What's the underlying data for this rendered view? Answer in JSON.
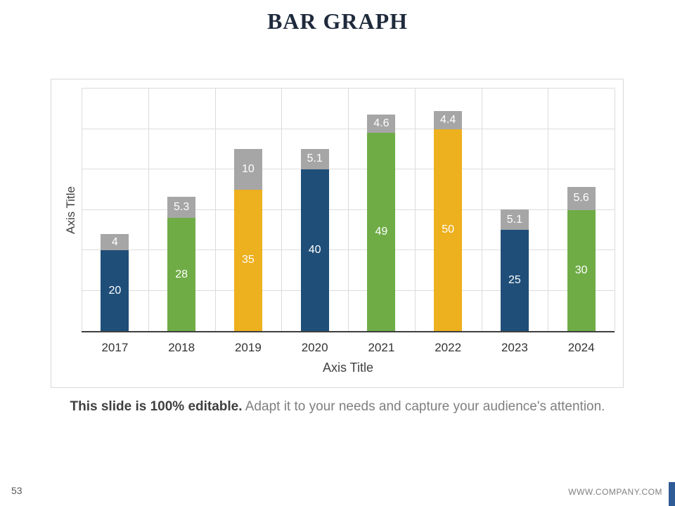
{
  "page": {
    "title": "BAR GRAPH",
    "caption_bold": "This slide is 100% editable.",
    "caption_rest": " Adapt it to your needs and capture your audience's attention.",
    "page_number": "53",
    "website": "WWW.COMPANY.COM"
  },
  "colors": {
    "blue": "#1F4E79",
    "green": "#6FAC46",
    "yellow": "#EDB01E",
    "gray_cap": "#A6A6A6",
    "accent_strip": "#2F5B97"
  },
  "chart_data": {
    "type": "bar",
    "stacked": true,
    "title": "",
    "xlabel": "Axis Title",
    "ylabel": "Axis Title",
    "ylim": [
      0,
      60
    ],
    "grid": true,
    "legend": false,
    "categories": [
      "2017",
      "2018",
      "2019",
      "2020",
      "2021",
      "2022",
      "2023",
      "2024"
    ],
    "series": [
      {
        "name": "base",
        "values": [
          20,
          28,
          35,
          40,
          49,
          50,
          25,
          30
        ],
        "colors": [
          "#1F4E79",
          "#6FAC46",
          "#EDB01E",
          "#1F4E79",
          "#6FAC46",
          "#EDB01E",
          "#1F4E79",
          "#6FAC46"
        ]
      },
      {
        "name": "cap",
        "values": [
          4,
          5.3,
          10,
          5.1,
          4.6,
          4.4,
          5.1,
          5.6
        ],
        "color": "#A6A6A6"
      }
    ]
  }
}
